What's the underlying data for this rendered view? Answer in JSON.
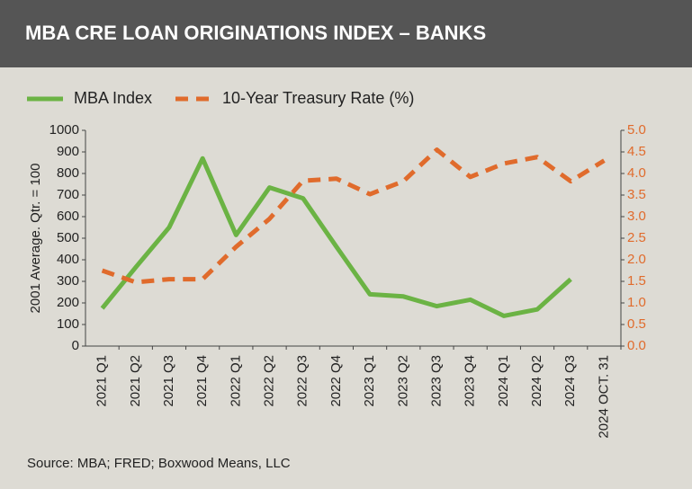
{
  "chart_data": {
    "type": "line",
    "title": "MBA CRE LOAN ORIGINATIONS INDEX – BANKS",
    "y_label": "2001 Average. Qtr. = 100",
    "source": "Source: MBA; FRED; Boxwood Means, LLC",
    "categories": [
      "2021 Q1",
      "2021 Q2",
      "2021 Q3",
      "2021 Q4",
      "2022 Q1",
      "2022 Q2",
      "2022 Q3",
      "2022 Q4",
      "2023 Q1",
      "2023 Q2",
      "2023 Q3",
      "2023 Q4",
      "2024 Q1",
      "2024 Q2",
      "2024 Q3",
      "2024 OCT. 31"
    ],
    "series": [
      {
        "name": "MBA Index",
        "color": "#6bb344",
        "dashed": false,
        "values": [
          175,
          365,
          550,
          870,
          515,
          735,
          685,
          460,
          240,
          230,
          185,
          215,
          140,
          170,
          310,
          null
        ]
      },
      {
        "name": "10-Year Treasury Rate (%)",
        "color": "#e06b2c",
        "dashed": true,
        "axis": "y2",
        "values": [
          1.75,
          1.48,
          1.55,
          1.55,
          2.3,
          2.95,
          3.83,
          3.88,
          3.52,
          3.82,
          4.55,
          3.92,
          4.23,
          4.38,
          3.82,
          4.3
        ]
      }
    ],
    "ylim": [
      0,
      1000
    ],
    "yticks": [
      0,
      100,
      200,
      300,
      400,
      500,
      600,
      700,
      800,
      900,
      1000
    ],
    "y2lim": [
      0,
      5
    ],
    "y2ticks": [
      {
        "value": 0,
        "label": "0.0"
      },
      0.5,
      {
        "value": 1,
        "label": "1.0"
      },
      1.5,
      {
        "value": 2,
        "label": "2.0"
      },
      2.5,
      {
        "value": 3,
        "label": "3.0"
      },
      3.5,
      {
        "value": 4,
        "label": "4.0"
      },
      4.5,
      {
        "value": 5,
        "label": "5.0"
      }
    ],
    "grid": false
  }
}
